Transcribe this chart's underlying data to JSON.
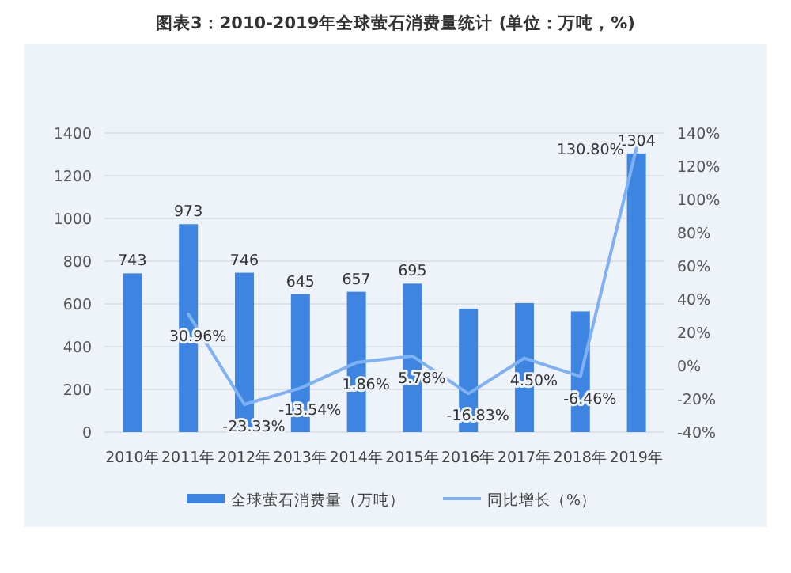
{
  "chart_data": {
    "type": "bar",
    "title": "图表3：2010-2019年全球萤石消费量统计 (单位：万吨，%)",
    "categories": [
      "2010年",
      "2011年",
      "2012年",
      "2013年",
      "2014年",
      "2015年",
      "2016年",
      "2017年",
      "2018年",
      "2019年"
    ],
    "series": [
      {
        "name": "全球萤石消费量（万吨）",
        "color": "#3d85e0",
        "values": [
          743,
          973,
          746,
          645,
          657,
          695,
          578,
          604,
          565,
          1304
        ],
        "value_labels": [
          "743",
          "973",
          "746",
          "645",
          "657",
          "695",
          null,
          null,
          null,
          "1304"
        ]
      },
      {
        "name": "同比增长（%）",
        "type": "line",
        "axis": "y2",
        "color": "#7fb2f5",
        "values": [
          null,
          30.96,
          -23.33,
          -13.54,
          1.86,
          5.78,
          -16.83,
          4.5,
          -6.46,
          130.8
        ],
        "value_labels": [
          null,
          "30.96%",
          "-23.33%",
          "-13.54%",
          "1.86%",
          "5.78%",
          "-16.83%",
          "4.50%",
          "-6.46%",
          "130.80%"
        ]
      }
    ],
    "ylim": [
      0,
      1400
    ],
    "yticks": [
      0,
      200,
      400,
      600,
      800,
      1000,
      1200,
      1400
    ],
    "y2lim": [
      -40,
      140
    ],
    "y2ticks": [
      {
        "value": -40,
        "label": "-40%"
      },
      {
        "value": -20,
        "label": "-20%"
      },
      {
        "value": 0,
        "label": "0%"
      },
      {
        "value": 20,
        "label": "20%"
      },
      {
        "value": 40,
        "label": "40%"
      },
      {
        "value": 60,
        "label": "60%"
      },
      {
        "value": 80,
        "label": "80%"
      },
      {
        "value": 100,
        "label": "100%"
      },
      {
        "value": 120,
        "label": "120%"
      },
      {
        "value": 140,
        "label": "140%"
      }
    ],
    "grid": "y",
    "legend": "bottom"
  }
}
